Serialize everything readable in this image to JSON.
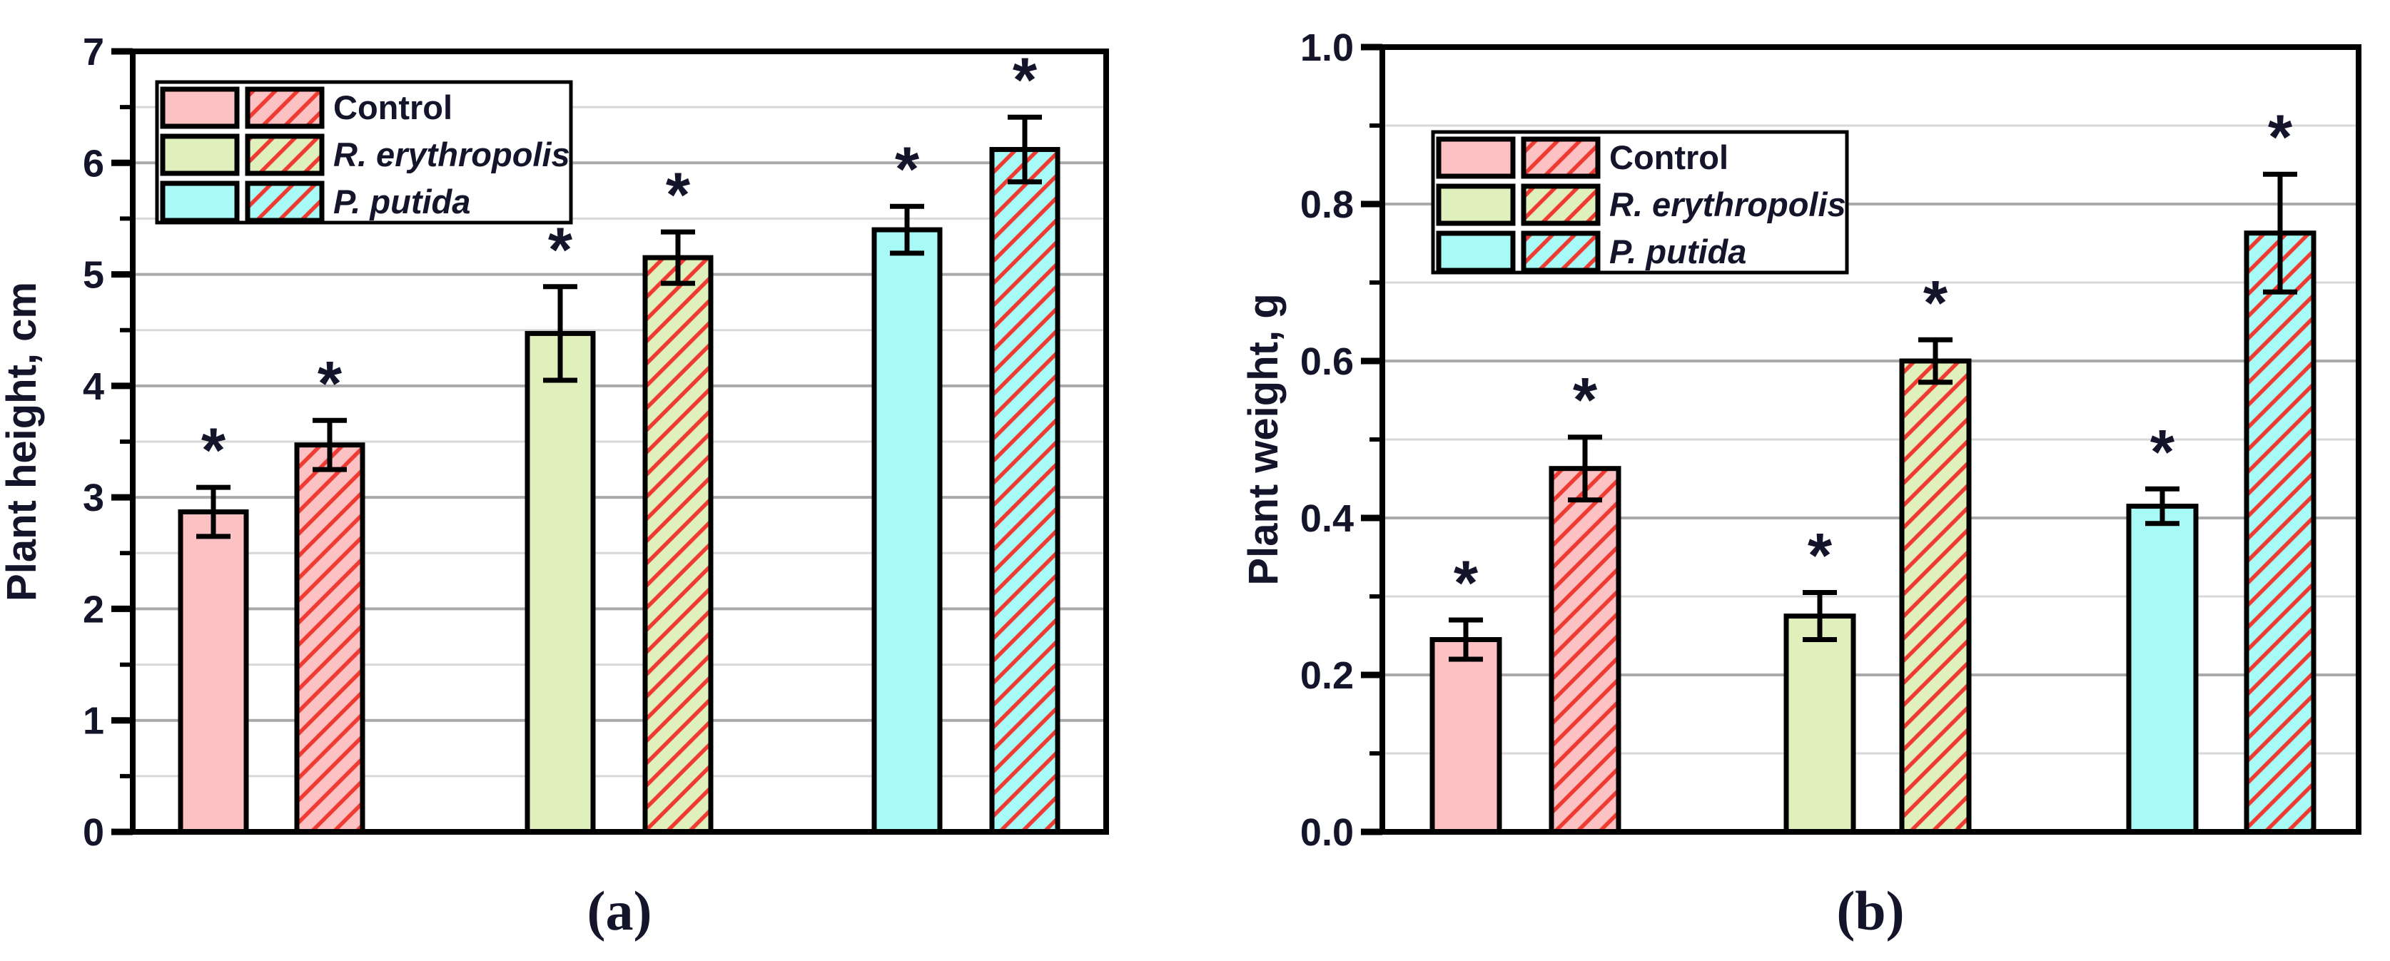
{
  "colors": {
    "background": "#ffffff",
    "text": "#14142a",
    "axis": "#000000",
    "grid_major": "#a9a9a9",
    "grid_minor": "#d8d8d8",
    "hatch_line": "#ee3a31",
    "category_fills": [
      "#fbc1c3",
      "#dff0bd",
      "#a8faf6"
    ]
  },
  "legend": {
    "entries": [
      {
        "label": "Control",
        "italic": false
      },
      {
        "label": "R. erythropolis",
        "italic": true
      },
      {
        "label": "P. putida",
        "italic": true
      }
    ]
  },
  "chart_data": [
    {
      "type": "bar",
      "panel": "a",
      "title": "",
      "ylabel": "Plant height, cm",
      "xlabel": "(a)",
      "ylim": [
        0,
        7
      ],
      "ytick_major_step": 1,
      "ytick_minor_step": 0.5,
      "ytick_labels": [
        "0",
        "1",
        "2",
        "3",
        "4",
        "5",
        "6",
        "7"
      ],
      "grid": true,
      "legend_position": "upper-left",
      "categories": [
        "Control",
        "R. erythropolis",
        "P. putida"
      ],
      "series": [
        {
          "name": "solid",
          "hatched": false,
          "values": [
            2.87,
            4.47,
            5.4
          ],
          "errors": [
            0.22,
            0.42,
            0.21
          ]
        },
        {
          "name": "hatched",
          "hatched": true,
          "values": [
            3.47,
            5.15,
            6.12
          ],
          "errors": [
            0.22,
            0.23,
            0.29
          ]
        }
      ],
      "significance_marker": "*"
    },
    {
      "type": "bar",
      "panel": "b",
      "title": "",
      "ylabel": "Plant weight, g",
      "xlabel": "(b)",
      "ylim": [
        0,
        1.0
      ],
      "ytick_major_step": 0.2,
      "ytick_minor_step": 0.1,
      "ytick_labels": [
        "0.0",
        "0.2",
        "0.4",
        "0.6",
        "0.8",
        "1.0"
      ],
      "grid": true,
      "legend_position": "upper-left",
      "categories": [
        "Control",
        "R. erythropolis",
        "P. putida"
      ],
      "series": [
        {
          "name": "solid",
          "hatched": false,
          "values": [
            0.245,
            0.275,
            0.415
          ],
          "errors": [
            0.025,
            0.03,
            0.022
          ]
        },
        {
          "name": "hatched",
          "hatched": true,
          "values": [
            0.463,
            0.6,
            0.763
          ],
          "errors": [
            0.04,
            0.027,
            0.075
          ]
        }
      ],
      "significance_marker": "*"
    }
  ]
}
